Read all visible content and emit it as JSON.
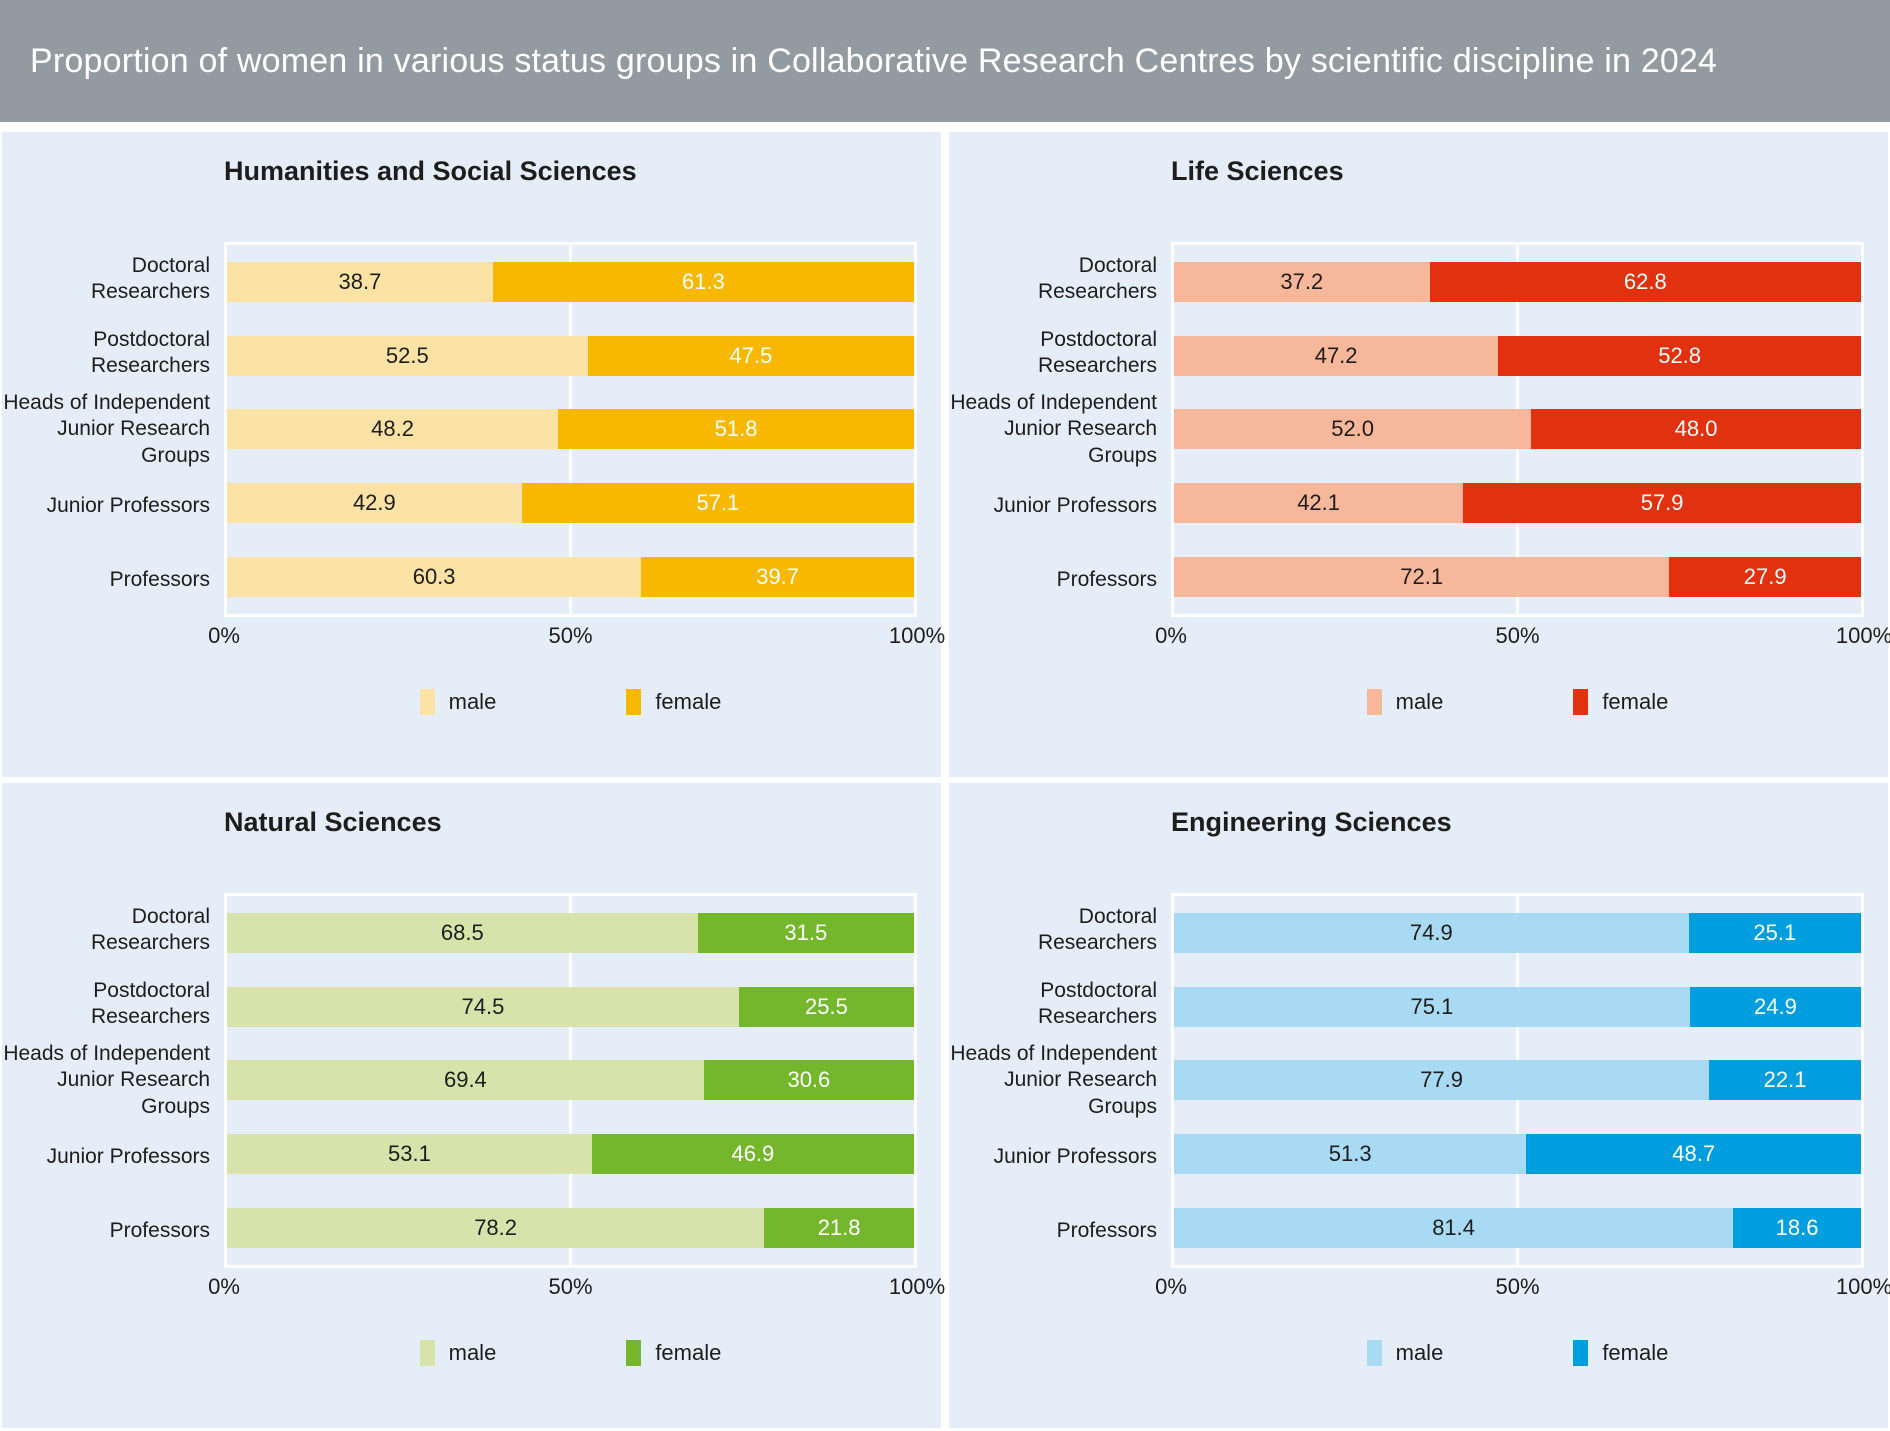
{
  "header": {
    "title": "Proportion of women in various status groups in Collaborative Research Centres by scientific discipline in 2024",
    "background_color": "#939aa0",
    "text_color": "#ffffff"
  },
  "panel_background_color": "#e4edf8",
  "category_labels_display": [
    "Doctoral\nResearchers",
    "Postdoctoral\nResearchers",
    "Heads of Independent\nJunior Research Groups",
    "Junior Professors",
    "Professors"
  ],
  "chart_data": [
    {
      "type": "bar",
      "stacked": true,
      "orientation": "horizontal",
      "title": "Humanities and Social Sciences",
      "unit": "%",
      "xlim": [
        0,
        100
      ],
      "x_ticks": [
        "0%",
        "50%",
        "100%"
      ],
      "grid": "white line at 50%",
      "legend_position": "bottom",
      "categories": [
        "Doctoral Researchers",
        "Postdoctoral Researchers",
        "Heads of Independent Junior Research Groups",
        "Junior Professors",
        "Professors"
      ],
      "series": [
        {
          "name": "male",
          "color": "#fde2a6",
          "values": [
            38.7,
            52.5,
            48.2,
            42.9,
            60.3
          ]
        },
        {
          "name": "female",
          "color": "#f9b800",
          "values": [
            61.3,
            47.5,
            51.8,
            57.1,
            39.7
          ]
        }
      ]
    },
    {
      "type": "bar",
      "stacked": true,
      "orientation": "horizontal",
      "title": "Life Sciences",
      "unit": "%",
      "xlim": [
        0,
        100
      ],
      "x_ticks": [
        "0%",
        "50%",
        "100%"
      ],
      "grid": "white line at 50%",
      "legend_position": "bottom",
      "categories": [
        "Doctoral Researchers",
        "Postdoctoral Researchers",
        "Heads of Independent Junior Research Groups",
        "Junior Professors",
        "Professors"
      ],
      "series": [
        {
          "name": "male",
          "color": "#f7b79b",
          "values": [
            37.2,
            47.2,
            52.0,
            42.1,
            72.1
          ]
        },
        {
          "name": "female",
          "color": "#e1310e",
          "values": [
            62.8,
            52.8,
            48.0,
            57.9,
            27.9
          ]
        }
      ]
    },
    {
      "type": "bar",
      "stacked": true,
      "orientation": "horizontal",
      "title": "Natural Sciences",
      "unit": "%",
      "xlim": [
        0,
        100
      ],
      "x_ticks": [
        "0%",
        "50%",
        "100%"
      ],
      "grid": "white line at 50%",
      "legend_position": "bottom",
      "categories": [
        "Doctoral Researchers",
        "Postdoctoral Researchers",
        "Heads of Independent Junior Research Groups",
        "Junior Professors",
        "Professors"
      ],
      "series": [
        {
          "name": "male",
          "color": "#d8e3ac",
          "values": [
            68.5,
            74.5,
            69.4,
            53.1,
            78.2
          ]
        },
        {
          "name": "female",
          "color": "#74b72c",
          "values": [
            31.5,
            25.5,
            30.6,
            46.9,
            21.8
          ]
        }
      ]
    },
    {
      "type": "bar",
      "stacked": true,
      "orientation": "horizontal",
      "title": "Engineering Sciences",
      "unit": "%",
      "xlim": [
        0,
        100
      ],
      "x_ticks": [
        "0%",
        "50%",
        "100%"
      ],
      "grid": "white line at 50%",
      "legend_position": "bottom",
      "categories": [
        "Doctoral Researchers",
        "Postdoctoral Researchers",
        "Heads of Independent Junior Research Groups",
        "Junior Professors",
        "Professors"
      ],
      "series": [
        {
          "name": "male",
          "color": "#a9daf3",
          "values": [
            74.9,
            75.1,
            77.9,
            51.3,
            81.4
          ]
        },
        {
          "name": "female",
          "color": "#009ddf",
          "values": [
            25.1,
            24.9,
            22.1,
            48.7,
            18.6
          ]
        }
      ]
    }
  ]
}
